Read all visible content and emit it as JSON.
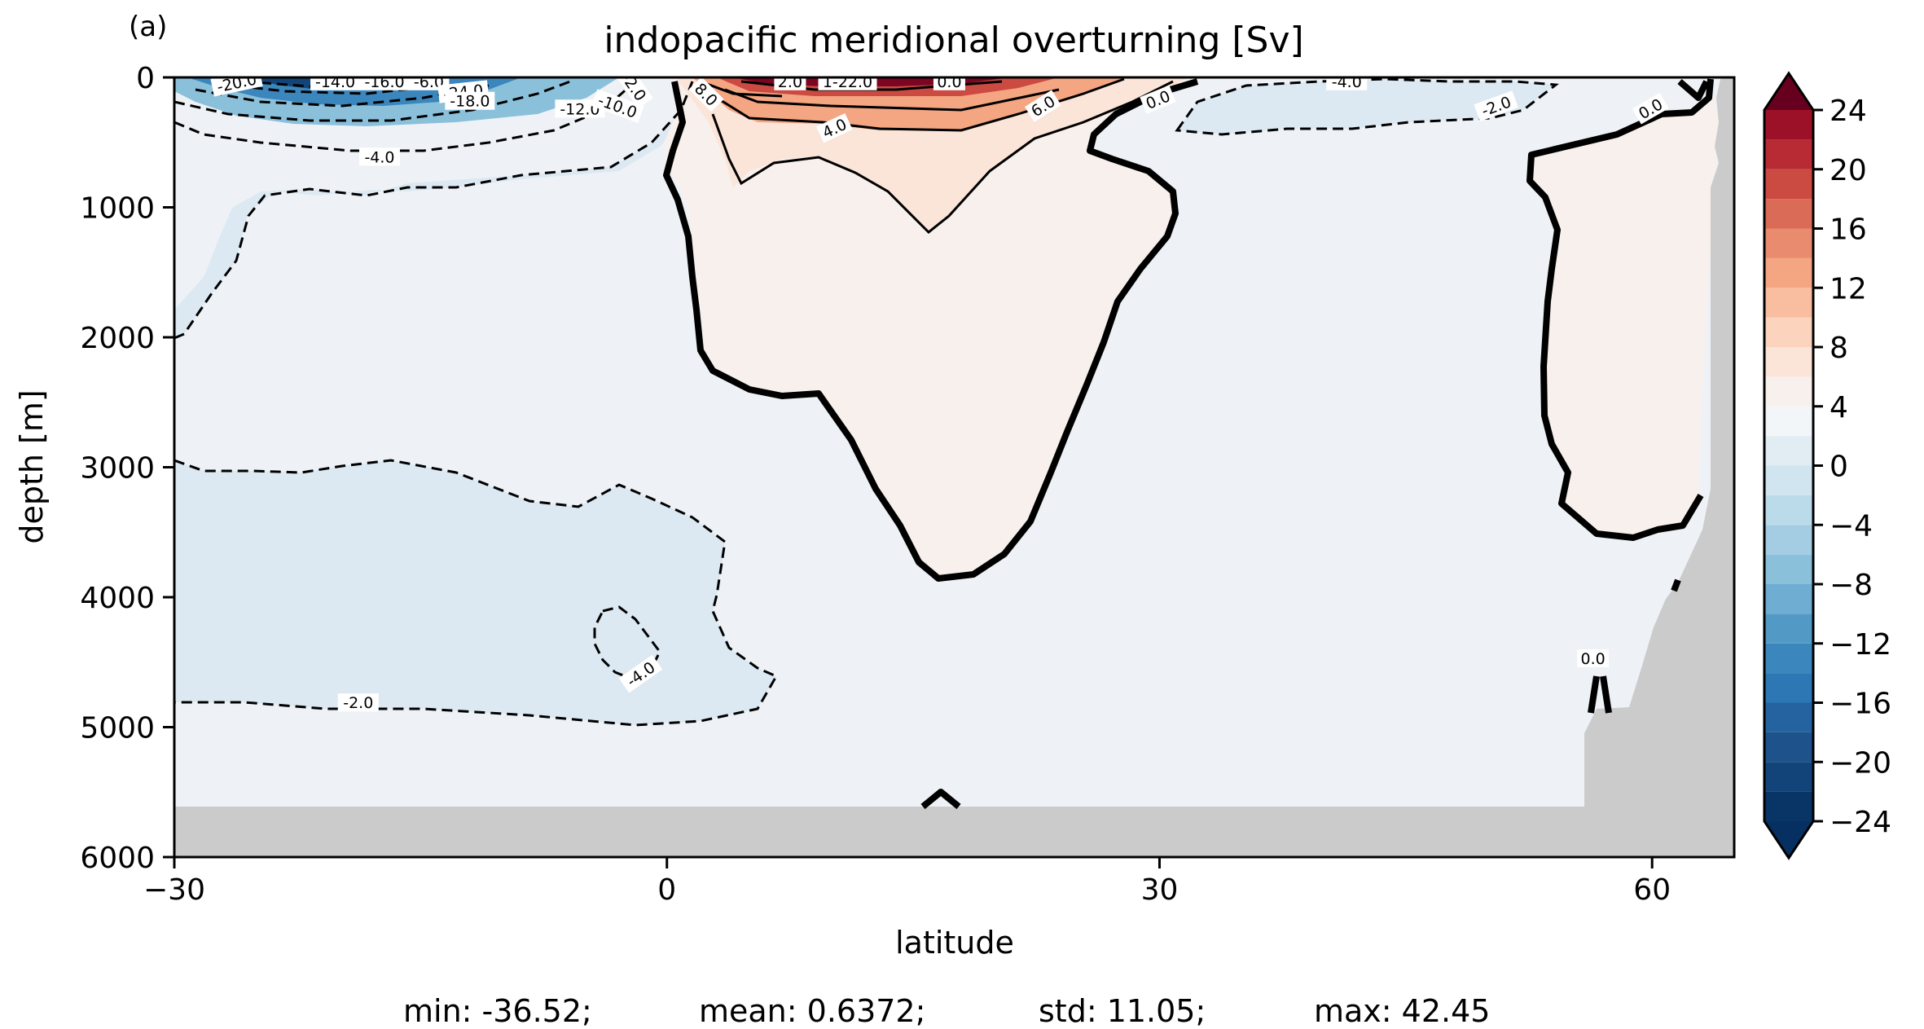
{
  "chart_data": {
    "type": "heatmap",
    "panel_label": "(a)",
    "title": "indopacific meridional overturning [Sv]",
    "xlabel": "latitude",
    "ylabel": "depth [m]",
    "xlim": [
      -30,
      65
    ],
    "ylim": [
      6000,
      0
    ],
    "x_ticks": [
      -30,
      0,
      30,
      60
    ],
    "x_tick_labels": [
      "−30",
      "0",
      "30",
      "60"
    ],
    "y_ticks": [
      0,
      1000,
      2000,
      3000,
      4000,
      5000,
      6000
    ],
    "y_tick_labels": [
      "0",
      "1000",
      "2000",
      "3000",
      "4000",
      "5000",
      "6000"
    ],
    "colormap": "RdBu_r",
    "colorbar": {
      "min": -24,
      "max": 24,
      "step": 2,
      "extend": "both",
      "ticks": [
        24,
        20,
        16,
        12,
        8,
        4,
        0,
        -4,
        -8,
        -12,
        -16,
        -20,
        -24
      ],
      "tick_labels": [
        "24",
        "20",
        "16",
        "12",
        "8",
        "4",
        "0",
        "−4",
        "−8",
        "−12",
        "−16",
        "−20",
        "−24"
      ],
      "colors": [
        "#083466",
        "#134479",
        "#1d528a",
        "#2463a0",
        "#2d77b4",
        "#3b86bc",
        "#5399c6",
        "#6fadd2",
        "#8bc0db",
        "#a4cde3",
        "#bcdbea",
        "#d1e5f0",
        "#e2edf3",
        "#f3f6f8",
        "#f8f0ec",
        "#fbe4d8",
        "#fcd3bd",
        "#f9bd9f",
        "#f4a582",
        "#e88b6e",
        "#da6b57",
        "#cb4a42",
        "#b82a34",
        "#9c1128",
        "#7b0622"
      ],
      "under_color": "#053061",
      "over_color": "#67001f"
    },
    "land_color": "#cbcbcb",
    "contour_labels": [
      {
        "text": "-20.0",
        "x": -26.2,
        "y": 40,
        "angle": -12
      },
      {
        "text": "-14.0",
        "x": -20.2,
        "y": 30,
        "angle": 0
      },
      {
        "text": "-16.0",
        "x": -17.2,
        "y": 30,
        "angle": 0
      },
      {
        "text": "-6.0",
        "x": -14.5,
        "y": 30,
        "angle": 0
      },
      {
        "text": "-24.0",
        "x": -12.4,
        "y": 110,
        "angle": -6
      },
      {
        "text": "-18.0",
        "x": -12.0,
        "y": 180,
        "angle": 0
      },
      {
        "text": "-12.0",
        "x": -5.3,
        "y": 240,
        "angle": 0
      },
      {
        "text": "-10.0",
        "x": -3.0,
        "y": 220,
        "angle": 20
      },
      {
        "text": "-2.0",
        "x": -2.0,
        "y": 70,
        "angle": 55
      },
      {
        "text": "-4.0",
        "x": -17.5,
        "y": 610,
        "angle": 0
      },
      {
        "text": "8.0",
        "x": 2.4,
        "y": 130,
        "angle": 45
      },
      {
        "text": "2.0",
        "x": 7.5,
        "y": 30,
        "angle": 0
      },
      {
        "text": "1-22.0",
        "x": 11.0,
        "y": 30,
        "angle": 0
      },
      {
        "text": "0.0",
        "x": 17.2,
        "y": 30,
        "angle": 0
      },
      {
        "text": "4.0",
        "x": 10.2,
        "y": 390,
        "angle": -25
      },
      {
        "text": "6.0",
        "x": 22.9,
        "y": 220,
        "angle": -32
      },
      {
        "text": "0.0",
        "x": 29.9,
        "y": 170,
        "angle": -22
      },
      {
        "text": "-4.0",
        "x": 41.4,
        "y": 30,
        "angle": 0
      },
      {
        "text": "-2.0",
        "x": 50.5,
        "y": 220,
        "angle": -20
      },
      {
        "text": "0.0",
        "x": 59.9,
        "y": 240,
        "angle": -30
      },
      {
        "text": "-4.0",
        "x": -1.6,
        "y": 4590,
        "angle": -35
      },
      {
        "text": "-2.0",
        "x": -18.8,
        "y": 4810,
        "angle": 0
      },
      {
        "text": "0.0",
        "x": 56.4,
        "y": 4470,
        "angle": 0
      }
    ],
    "stats": {
      "min": "min: -36.52;",
      "mean": "mean: 0.6372;",
      "std": "std: 11.05;",
      "max": "max: 42.45"
    }
  }
}
